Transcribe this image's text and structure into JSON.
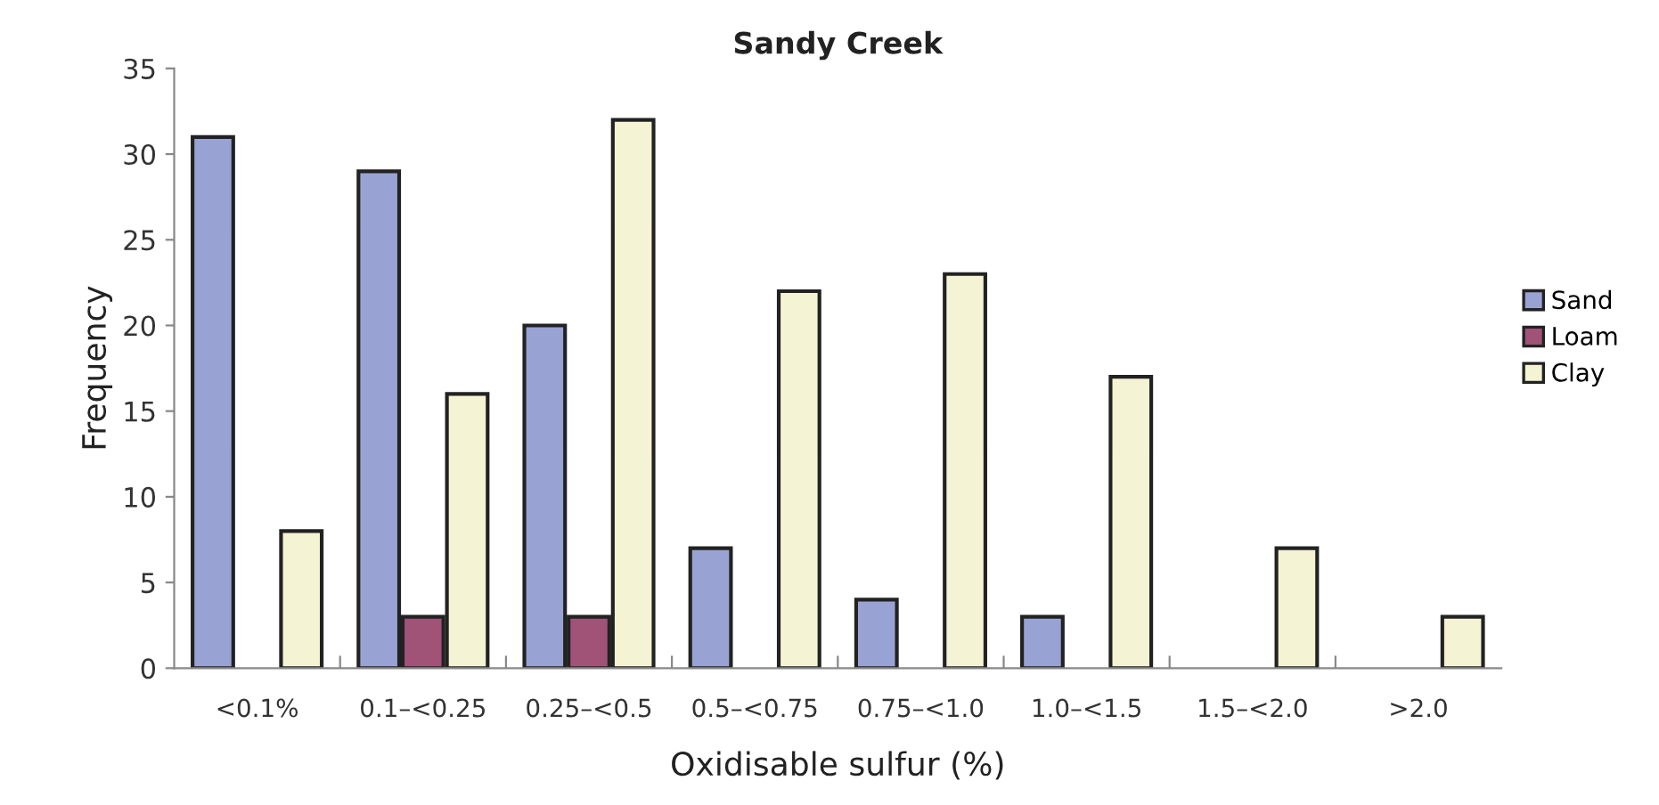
{
  "chart_data": {
    "type": "bar",
    "title": "Sandy Creek",
    "xlabel": "Oxidisable sulfur (%)",
    "ylabel": "Frequency",
    "categories": [
      "<0.1%",
      "0.1–<0.25",
      "0.25–<0.5",
      "0.5–<0.75",
      "0.75–<1.0",
      "1.0–<1.5",
      "1.5–<2.0",
      ">2.0"
    ],
    "series": [
      {
        "name": "Sand",
        "color": "#99a3d3",
        "values": [
          31,
          29,
          20,
          7,
          4,
          3,
          null,
          null
        ]
      },
      {
        "name": "Loam",
        "color": "#a05277",
        "values": [
          null,
          3,
          3,
          null,
          null,
          null,
          null,
          null
        ]
      },
      {
        "name": "Clay",
        "color": "#f4f3d3",
        "values": [
          8,
          16,
          32,
          22,
          23,
          17,
          7,
          3
        ]
      }
    ],
    "ylim": [
      0,
      35
    ],
    "yticks": [
      0,
      5,
      10,
      15,
      20,
      25,
      30,
      35
    ],
    "grid": false,
    "legend": "right"
  }
}
